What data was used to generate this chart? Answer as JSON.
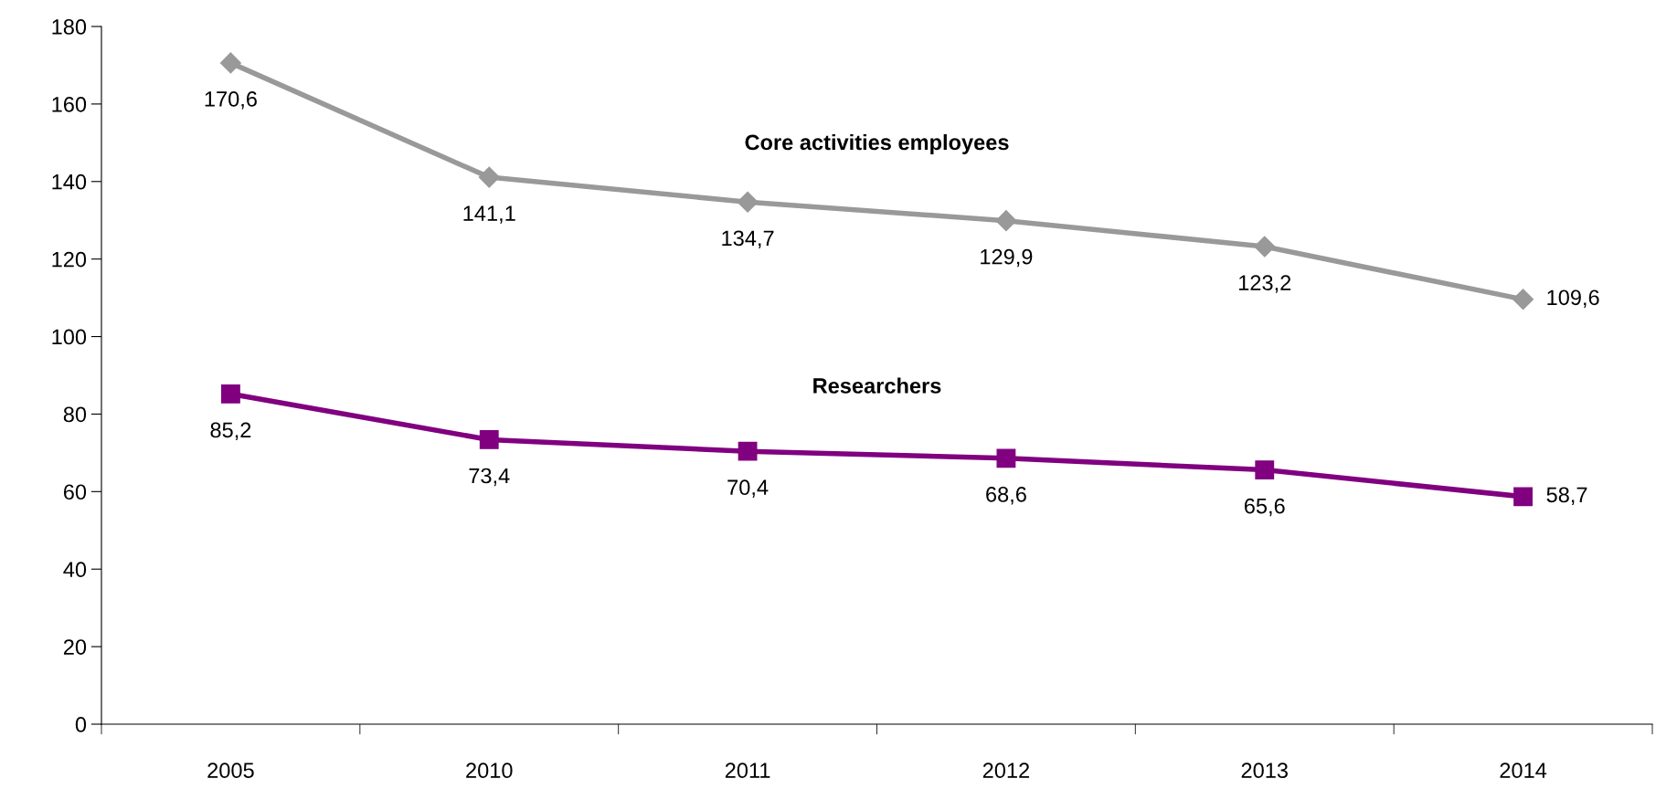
{
  "chart_data": {
    "type": "line",
    "categories": [
      "2005",
      "2010",
      "2011",
      "2012",
      "2013",
      "2014"
    ],
    "series": [
      {
        "name": "Core activities employees",
        "color": "#999999",
        "marker": "diamond",
        "values": [
          170.6,
          141.1,
          134.7,
          129.9,
          123.2,
          109.6
        ],
        "value_labels": [
          "170,6",
          "141,1",
          "134,7",
          "129,9",
          "123,2",
          "109,6"
        ]
      },
      {
        "name": "Researchers",
        "color": "#800080",
        "marker": "square",
        "values": [
          85.2,
          73.4,
          70.4,
          68.6,
          65.6,
          58.7
        ],
        "value_labels": [
          "85,2",
          "73,4",
          "70,4",
          "68,6",
          "65,6",
          "58,7"
        ]
      }
    ],
    "ylim": [
      0,
      180
    ],
    "yticks": [
      0,
      20,
      40,
      60,
      80,
      100,
      120,
      140,
      160,
      180
    ],
    "grid": false,
    "legend": false,
    "line_style": "solid"
  }
}
